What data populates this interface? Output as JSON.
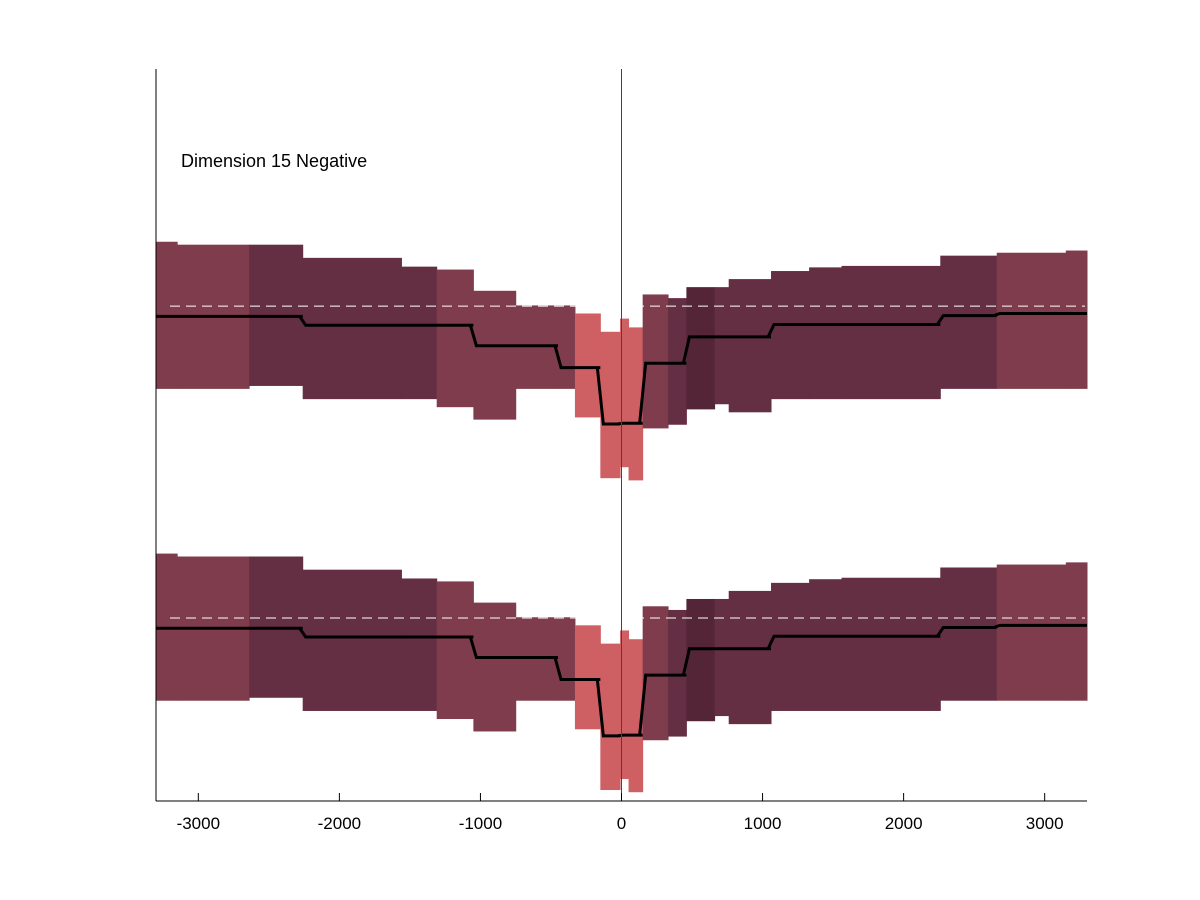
{
  "chart_data": {
    "type": "area",
    "annotation": "Dimension 15 Negative",
    "xlim": [
      -3300,
      3300
    ],
    "xticks": [
      -3000,
      -2000,
      -1000,
      0,
      1000,
      2000,
      3000
    ],
    "xtick_labels": [
      "-3000",
      "-2000",
      "-1000",
      "0",
      "1000",
      "2000",
      "3000"
    ],
    "ylim": [
      0,
      1
    ],
    "grid": false,
    "colors": {
      "band_light": "#ce5f63",
      "band_mid": "#7f3c4c",
      "band_dark": "#652f43",
      "band_darkest": "#532537",
      "line": "#000000",
      "reference": "#ffffff",
      "center_line": "#3a33bd",
      "axis": "#000000"
    },
    "center_line_x": 0,
    "panels": [
      {
        "reference_y": 0.676,
        "line_y0": 0.662,
        "segments": [
          {
            "x0": -3300,
            "x1": -3150,
            "lo": 0.563,
            "hi": 0.764,
            "line": 0.662,
            "tone": "band_mid"
          },
          {
            "x0": -3150,
            "x1": -2640,
            "lo": 0.563,
            "hi": 0.76,
            "line": 0.662,
            "tone": "band_mid"
          },
          {
            "x0": -2640,
            "x1": -2260,
            "lo": 0.567,
            "hi": 0.76,
            "line": 0.662,
            "tone": "band_dark"
          },
          {
            "x0": -2260,
            "x1": -1560,
            "lo": 0.549,
            "hi": 0.742,
            "line": 0.65,
            "tone": "band_dark"
          },
          {
            "x0": -1560,
            "x1": -1310,
            "lo": 0.549,
            "hi": 0.73,
            "line": 0.65,
            "tone": "band_dark"
          },
          {
            "x0": -1310,
            "x1": -1050,
            "lo": 0.538,
            "hi": 0.726,
            "line": 0.65,
            "tone": "band_mid"
          },
          {
            "x0": -1050,
            "x1": -750,
            "lo": 0.521,
            "hi": 0.697,
            "line": 0.622,
            "tone": "band_mid"
          },
          {
            "x0": -750,
            "x1": -450,
            "lo": 0.563,
            "hi": 0.677,
            "line": 0.622,
            "tone": "band_mid"
          },
          {
            "x0": -450,
            "x1": -330,
            "lo": 0.563,
            "hi": 0.677,
            "line": 0.592,
            "tone": "band_mid"
          },
          {
            "x0": -330,
            "x1": -150,
            "lo": 0.524,
            "hi": 0.666,
            "line": 0.592,
            "tone": "band_light"
          },
          {
            "x0": -150,
            "x1": -10,
            "lo": 0.441,
            "hi": 0.641,
            "line": 0.515,
            "tone": "band_light"
          },
          {
            "x0": -10,
            "x1": 50,
            "lo": 0.456,
            "hi": 0.659,
            "line": 0.516,
            "tone": "band_light"
          },
          {
            "x0": 50,
            "x1": 150,
            "lo": 0.438,
            "hi": 0.647,
            "line": 0.516,
            "tone": "band_light"
          },
          {
            "x0": 150,
            "x1": 330,
            "lo": 0.509,
            "hi": 0.692,
            "line": 0.598,
            "tone": "band_mid"
          },
          {
            "x0": 330,
            "x1": 460,
            "lo": 0.514,
            "hi": 0.687,
            "line": 0.598,
            "tone": "band_dark"
          },
          {
            "x0": 460,
            "x1": 660,
            "lo": 0.535,
            "hi": 0.702,
            "line": 0.634,
            "tone": "band_darkest"
          },
          {
            "x0": 660,
            "x1": 760,
            "lo": 0.542,
            "hi": 0.702,
            "line": 0.634,
            "tone": "band_dark"
          },
          {
            "x0": 760,
            "x1": 1060,
            "lo": 0.531,
            "hi": 0.713,
            "line": 0.634,
            "tone": "band_dark"
          },
          {
            "x0": 1060,
            "x1": 1330,
            "lo": 0.549,
            "hi": 0.724,
            "line": 0.651,
            "tone": "band_dark"
          },
          {
            "x0": 1330,
            "x1": 1560,
            "lo": 0.549,
            "hi": 0.729,
            "line": 0.651,
            "tone": "band_dark"
          },
          {
            "x0": 1560,
            "x1": 2260,
            "lo": 0.549,
            "hi": 0.731,
            "line": 0.651,
            "tone": "band_dark"
          },
          {
            "x0": 2260,
            "x1": 2660,
            "lo": 0.563,
            "hi": 0.745,
            "line": 0.663,
            "tone": "band_dark"
          },
          {
            "x0": 2660,
            "x1": 3150,
            "lo": 0.563,
            "hi": 0.749,
            "line": 0.666,
            "tone": "band_mid"
          },
          {
            "x0": 3150,
            "x1": 3300,
            "lo": 0.563,
            "hi": 0.752,
            "line": 0.666,
            "tone": "band_mid"
          }
        ]
      },
      {
        "reference_y": 0.25,
        "line_y0": 0.236,
        "segments": [
          {
            "x0": -3300,
            "x1": -3150,
            "lo": 0.137,
            "hi": 0.338,
            "line": 0.236,
            "tone": "band_mid"
          },
          {
            "x0": -3150,
            "x1": -2640,
            "lo": 0.137,
            "hi": 0.334,
            "line": 0.236,
            "tone": "band_mid"
          },
          {
            "x0": -2640,
            "x1": -2260,
            "lo": 0.141,
            "hi": 0.334,
            "line": 0.236,
            "tone": "band_dark"
          },
          {
            "x0": -2260,
            "x1": -1560,
            "lo": 0.123,
            "hi": 0.316,
            "line": 0.224,
            "tone": "band_dark"
          },
          {
            "x0": -1560,
            "x1": -1310,
            "lo": 0.123,
            "hi": 0.304,
            "line": 0.224,
            "tone": "band_dark"
          },
          {
            "x0": -1310,
            "x1": -1050,
            "lo": 0.112,
            "hi": 0.3,
            "line": 0.224,
            "tone": "band_mid"
          },
          {
            "x0": -1050,
            "x1": -750,
            "lo": 0.095,
            "hi": 0.271,
            "line": 0.196,
            "tone": "band_mid"
          },
          {
            "x0": -750,
            "x1": -450,
            "lo": 0.137,
            "hi": 0.251,
            "line": 0.196,
            "tone": "band_mid"
          },
          {
            "x0": -450,
            "x1": -330,
            "lo": 0.137,
            "hi": 0.251,
            "line": 0.166,
            "tone": "band_mid"
          },
          {
            "x0": -330,
            "x1": -150,
            "lo": 0.098,
            "hi": 0.24,
            "line": 0.166,
            "tone": "band_light"
          },
          {
            "x0": -150,
            "x1": -10,
            "lo": 0.015,
            "hi": 0.215,
            "line": 0.089,
            "tone": "band_light"
          },
          {
            "x0": -10,
            "x1": 50,
            "lo": 0.03,
            "hi": 0.233,
            "line": 0.09,
            "tone": "band_light"
          },
          {
            "x0": 50,
            "x1": 150,
            "lo": 0.012,
            "hi": 0.221,
            "line": 0.09,
            "tone": "band_light"
          },
          {
            "x0": 150,
            "x1": 330,
            "lo": 0.083,
            "hi": 0.266,
            "line": 0.172,
            "tone": "band_mid"
          },
          {
            "x0": 330,
            "x1": 460,
            "lo": 0.088,
            "hi": 0.261,
            "line": 0.172,
            "tone": "band_dark"
          },
          {
            "x0": 460,
            "x1": 660,
            "lo": 0.109,
            "hi": 0.276,
            "line": 0.208,
            "tone": "band_darkest"
          },
          {
            "x0": 660,
            "x1": 760,
            "lo": 0.116,
            "hi": 0.276,
            "line": 0.208,
            "tone": "band_dark"
          },
          {
            "x0": 760,
            "x1": 1060,
            "lo": 0.105,
            "hi": 0.287,
            "line": 0.208,
            "tone": "band_dark"
          },
          {
            "x0": 1060,
            "x1": 1330,
            "lo": 0.123,
            "hi": 0.298,
            "line": 0.225,
            "tone": "band_dark"
          },
          {
            "x0": 1330,
            "x1": 1560,
            "lo": 0.123,
            "hi": 0.303,
            "line": 0.225,
            "tone": "band_dark"
          },
          {
            "x0": 1560,
            "x1": 2260,
            "lo": 0.123,
            "hi": 0.305,
            "line": 0.225,
            "tone": "band_dark"
          },
          {
            "x0": 2260,
            "x1": 2660,
            "lo": 0.137,
            "hi": 0.319,
            "line": 0.237,
            "tone": "band_dark"
          },
          {
            "x0": 2660,
            "x1": 3150,
            "lo": 0.137,
            "hi": 0.323,
            "line": 0.24,
            "tone": "band_mid"
          },
          {
            "x0": 3150,
            "x1": 3300,
            "lo": 0.137,
            "hi": 0.326,
            "line": 0.24,
            "tone": "band_mid"
          }
        ]
      }
    ]
  }
}
